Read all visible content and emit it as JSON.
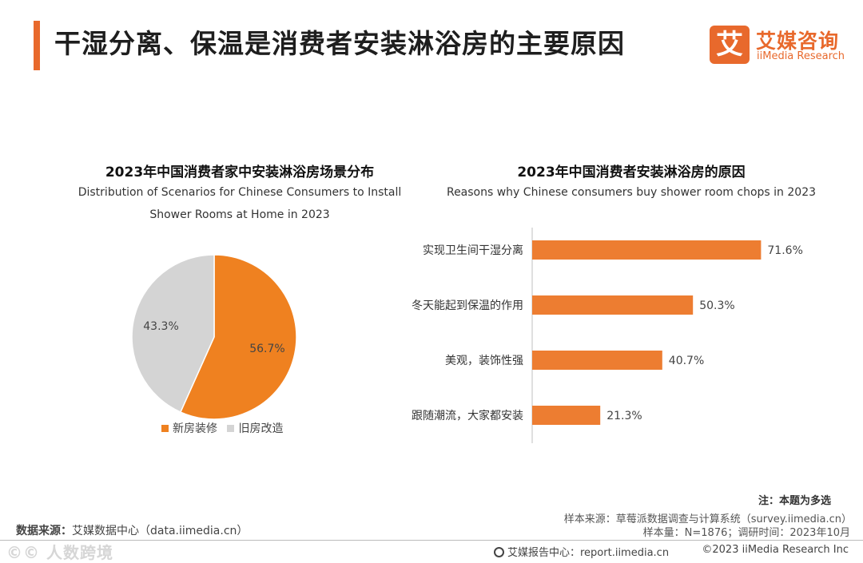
{
  "header": {
    "title": "干湿分离、保温是消费者安装淋浴房的主要原因",
    "logo_mark": "艾",
    "logo_cn": "艾媒咨询",
    "logo_en": "iiMedia Research"
  },
  "colors": {
    "accent": "#e8692c",
    "orange": "#ef8120",
    "grey": "#d4d4d4",
    "bar": "#ed7d31"
  },
  "chart_data": [
    {
      "type": "pie",
      "title": "2023年中国消费者家中安装淋浴房场景分布",
      "subtitle_line1": "Distribution of Scenarios for Chinese Consumers to Install",
      "subtitle_line2": "Shower Rooms at Home in 2023",
      "categories": [
        "新房装修",
        "旧房改造"
      ],
      "values": [
        56.7,
        43.3
      ],
      "labels": [
        "56.7%",
        "43.3%"
      ],
      "legend": "bottom"
    },
    {
      "type": "bar",
      "orientation": "horizontal",
      "title": "2023年中国消费者安装淋浴房的原因",
      "subtitle": "Reasons why Chinese consumers buy shower room chops in 2023",
      "categories": [
        "实现卫生间干湿分离",
        "冬天能起到保温的作用",
        "美观，装饰性强",
        "跟随潮流，大家都安装"
      ],
      "values": [
        71.6,
        50.3,
        40.7,
        21.3
      ],
      "labels": [
        "71.6%",
        "50.3%",
        "40.7%",
        "21.3%"
      ],
      "xlim": [
        0,
        75
      ]
    }
  ],
  "footer": {
    "note": "注：本题为多选",
    "sample_source": "样本来源：草莓派数据调查与计算系统（survey.iimedia.cn）",
    "sample_size": "样本量：N=1876；调研时间：2023年10月",
    "data_source_label": "数据来源：",
    "data_source_value": "艾媒数据中心（data.iimedia.cn）",
    "watermark": "©© 人数跨境",
    "report_center": "艾媒报告中心：report.iimedia.cn",
    "copyright": "©2023  iiMedia Research  Inc"
  }
}
